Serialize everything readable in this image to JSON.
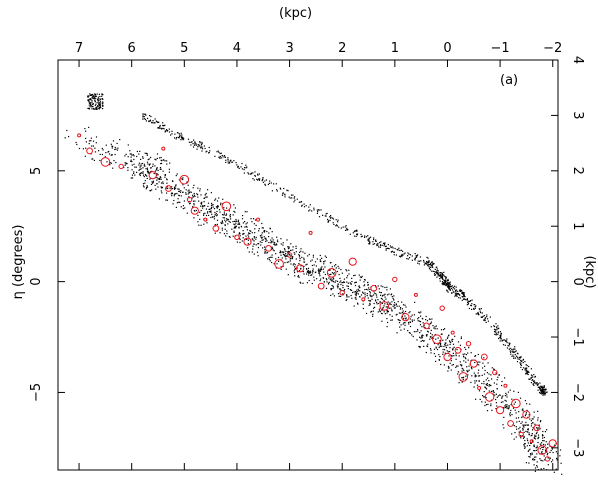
{
  "chart_data": {
    "type": "scatter",
    "panel_label": "(a)",
    "axes": {
      "left": {
        "label": "η (degrees)",
        "range": [
          -8.5,
          10.0
        ],
        "ticks": [
          -5,
          0,
          5
        ],
        "tick_labels": [
          "−5",
          "0",
          "5"
        ]
      },
      "top": {
        "label": "(kpc)",
        "range": [
          7.4,
          -2.1
        ],
        "ticks": [
          7,
          6,
          5,
          4,
          3,
          2,
          1,
          0,
          -1,
          -2
        ],
        "tick_labels": [
          "7",
          "6",
          "5",
          "4",
          "3",
          "2",
          "1",
          "0",
          "−1",
          "−2"
        ]
      },
      "right": {
        "label": "(kpc)",
        "range": [
          -3.4,
          4.0
        ],
        "ticks": [
          -3,
          -2,
          -1,
          0,
          1,
          2,
          3,
          4
        ],
        "tick_labels": [
          "−3",
          "−2",
          "−1",
          "0",
          "1",
          "2",
          "3",
          "4"
        ]
      },
      "bottom": {
        "label": "",
        "range": [
          7.4,
          -2.1
        ],
        "ticks": [],
        "tick_labels": []
      }
    },
    "colors": {
      "points": "#000000",
      "highlight": "#e8141c",
      "axes": "#000000"
    },
    "series": [
      {
        "marker": "dot",
        "color": "#000000",
        "upper_track": [
          [
            5.8,
            7.5
          ],
          [
            5.2,
            6.7
          ],
          [
            4.4,
            5.8
          ],
          [
            3.5,
            4.6
          ],
          [
            2.5,
            3.2
          ],
          [
            1.6,
            2.0
          ],
          [
            1.0,
            1.4
          ],
          [
            0.4,
            0.9
          ],
          [
            0.1,
            0.2
          ],
          [
            0.0,
            -0.2
          ],
          [
            -0.3,
            -0.7
          ],
          [
            -0.8,
            -1.8
          ],
          [
            -1.3,
            -3.3
          ],
          [
            -1.75,
            -4.8
          ],
          [
            -1.85,
            -5.0
          ]
        ],
        "upper_cluster": [
          [
            6.85,
            8.5
          ],
          [
            6.55,
            8.5
          ],
          [
            6.55,
            7.8
          ],
          [
            6.85,
            7.8
          ]
        ],
        "lower_band": [
          [
            7.0,
            6.4
          ],
          [
            5.8,
            5.3
          ],
          [
            5.5,
            4.7
          ],
          [
            5.0,
            4.0
          ],
          [
            4.5,
            3.2
          ],
          [
            4.0,
            2.5
          ],
          [
            3.5,
            1.8
          ],
          [
            3.0,
            1.1
          ],
          [
            2.5,
            0.5
          ],
          [
            2.0,
            0.0
          ],
          [
            1.5,
            -0.6
          ],
          [
            1.0,
            -1.3
          ],
          [
            0.5,
            -2.1
          ],
          [
            0.0,
            -3.0
          ],
          [
            -0.5,
            -4.0
          ],
          [
            -1.0,
            -5.3
          ],
          [
            -1.5,
            -6.5
          ],
          [
            -1.7,
            -7.3
          ],
          [
            -1.9,
            -8.2
          ]
        ]
      },
      {
        "marker": "open-circle",
        "color": "#e8141c",
        "points": [
          [
            7.0,
            6.6
          ],
          [
            6.8,
            5.9
          ],
          [
            6.5,
            5.4
          ],
          [
            6.2,
            5.2
          ],
          [
            5.6,
            4.8
          ],
          [
            5.4,
            6.0
          ],
          [
            5.3,
            4.2
          ],
          [
            5.0,
            4.6
          ],
          [
            4.9,
            3.7
          ],
          [
            4.8,
            3.2
          ],
          [
            4.6,
            2.8
          ],
          [
            4.4,
            2.4
          ],
          [
            4.2,
            3.4
          ],
          [
            4.0,
            2.0
          ],
          [
            3.8,
            1.8
          ],
          [
            3.6,
            2.8
          ],
          [
            3.4,
            1.5
          ],
          [
            3.2,
            0.8
          ],
          [
            3.0,
            1.2
          ],
          [
            2.8,
            0.6
          ],
          [
            2.6,
            2.2
          ],
          [
            2.4,
            -0.2
          ],
          [
            2.2,
            0.4
          ],
          [
            2.0,
            -0.5
          ],
          [
            1.8,
            0.9
          ],
          [
            1.6,
            -0.8
          ],
          [
            1.4,
            -0.3
          ],
          [
            1.2,
            -1.1
          ],
          [
            1.0,
            0.1
          ],
          [
            0.8,
            -1.6
          ],
          [
            0.6,
            -0.6
          ],
          [
            0.4,
            -2.0
          ],
          [
            0.2,
            -2.6
          ],
          [
            0.1,
            -1.2
          ],
          [
            0.0,
            -3.4
          ],
          [
            -0.1,
            -2.3
          ],
          [
            -0.2,
            -3.1
          ],
          [
            -0.3,
            -4.3
          ],
          [
            -0.4,
            -2.8
          ],
          [
            -0.5,
            -3.7
          ],
          [
            -0.6,
            -4.8
          ],
          [
            -0.7,
            -3.4
          ],
          [
            -0.8,
            -5.2
          ],
          [
            -0.9,
            -4.1
          ],
          [
            -1.0,
            -5.8
          ],
          [
            -1.1,
            -4.7
          ],
          [
            -1.2,
            -6.4
          ],
          [
            -1.3,
            -5.5
          ],
          [
            -1.4,
            -6.9
          ],
          [
            -1.5,
            -6.0
          ],
          [
            -1.6,
            -7.2
          ],
          [
            -1.7,
            -6.6
          ],
          [
            -1.8,
            -7.6
          ],
          [
            -1.9,
            -8.0
          ],
          [
            -2.0,
            -7.3
          ]
        ]
      }
    ]
  }
}
